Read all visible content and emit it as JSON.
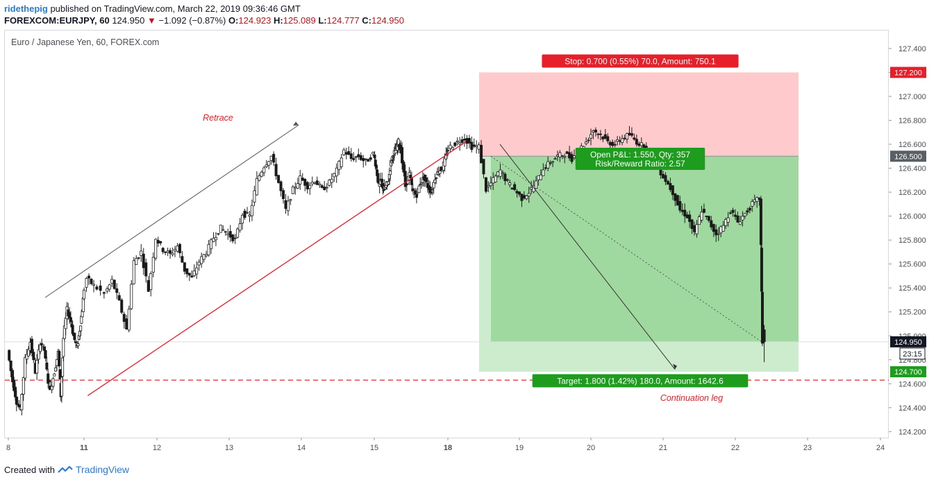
{
  "header": {
    "user": "ridethepig",
    "published": " published on TradingView.com, March 22, 2019 09:36:46 GMT",
    "symbol": "FOREXCOM:EURJPY, 60",
    "last": "124.950",
    "change": "−1.092 (−0.87%)",
    "open_label": "O:",
    "open": "124.923",
    "high_label": "H:",
    "high": "125.089",
    "low_label": "L:",
    "low": "124.777",
    "close_label": "C:",
    "close": "124.950"
  },
  "footer": {
    "prefix": "Created with",
    "brand": "TradingView"
  },
  "colors": {
    "stop_zone": "#fecacb",
    "stop_label": "#e5202a",
    "target_zone": "#a0d9a0",
    "target_zone_light": "#cdebcd",
    "target_label": "#1e9c1e",
    "candle": "#1b1b1b",
    "trendline": "#e5202a"
  },
  "chart_data": {
    "type": "candlestick",
    "title": "Euro / Japanese Yen, 60, FOREX.com",
    "x_ticks": [
      "8",
      "11",
      "12",
      "13",
      "14",
      "15",
      "18",
      "19",
      "20",
      "21",
      "22",
      "23",
      "24"
    ],
    "bold_x_ticks": [
      "11",
      "18"
    ],
    "ylim": [
      124.15,
      127.55
    ],
    "y_ticks": [
      "124.200",
      "124.400",
      "124.600",
      "124.800",
      "125.000",
      "125.200",
      "125.400",
      "125.600",
      "125.800",
      "126.000",
      "126.200",
      "126.400",
      "126.600",
      "126.800",
      "127.000",
      "127.200",
      "127.400"
    ],
    "price_tags": [
      {
        "label": "127.200",
        "value": 127.2,
        "kind": "stop"
      },
      {
        "label": "126.500",
        "value": 126.5,
        "kind": "entry"
      },
      {
        "label": "124.950",
        "value": 124.95,
        "kind": "last"
      },
      {
        "label": "23:15",
        "kind": "countdown"
      },
      {
        "label": "124.700",
        "value": 124.7,
        "kind": "target"
      }
    ],
    "position": {
      "entry": 126.5,
      "stop": 127.2,
      "target": 124.7,
      "stop_label": "Stop: 0.700 (0.55%) 70.0, Amount: 750.1",
      "target_label": "Target: 1.800 (1.42%) 180.0, Amount: 1642.6",
      "pnl_label": "Open P&L: 1.550, Qty: 357",
      "rr_label": "Risk/Reward Ratio: 2.57"
    },
    "annotations": [
      {
        "text": "Retrace"
      },
      {
        "text": "Continuation leg"
      }
    ],
    "support_level": 124.63,
    "swing_low": 124.5,
    "last_price": 124.95,
    "ohlc_path": [
      [
        8.0,
        124.88
      ],
      [
        8.2,
        124.62
      ],
      [
        8.35,
        124.45
      ],
      [
        8.5,
        124.38
      ],
      [
        8.7,
        124.8
      ],
      [
        8.9,
        124.95
      ],
      [
        9.1,
        124.7
      ],
      [
        9.3,
        124.95
      ],
      [
        9.45,
        124.88
      ],
      [
        9.6,
        124.62
      ],
      [
        9.7,
        124.55
      ],
      [
        9.85,
        124.7
      ],
      [
        10.0,
        124.86
      ],
      [
        10.1,
        124.5
      ],
      [
        10.2,
        124.98
      ],
      [
        10.35,
        125.22
      ],
      [
        10.5,
        125.12
      ],
      [
        10.6,
        125.0
      ],
      [
        10.75,
        124.9
      ],
      [
        10.85,
        125.05
      ],
      [
        10.95,
        125.22
      ],
      [
        11.05,
        125.48
      ],
      [
        11.15,
        125.42
      ],
      [
        11.3,
        125.35
      ],
      [
        11.4,
        125.46
      ],
      [
        11.5,
        125.28
      ],
      [
        11.6,
        125.05
      ],
      [
        11.7,
        125.62
      ],
      [
        11.8,
        125.7
      ],
      [
        11.9,
        125.38
      ],
      [
        12.0,
        125.82
      ],
      [
        12.1,
        125.72
      ],
      [
        12.2,
        125.68
      ],
      [
        12.3,
        125.75
      ],
      [
        12.4,
        125.55
      ],
      [
        12.5,
        125.48
      ],
      [
        12.6,
        125.62
      ],
      [
        12.7,
        125.7
      ],
      [
        12.8,
        125.82
      ],
      [
        12.9,
        125.9
      ],
      [
        13.0,
        125.85
      ],
      [
        13.1,
        125.8
      ],
      [
        13.2,
        126.02
      ],
      [
        13.3,
        126.0
      ],
      [
        13.4,
        126.3
      ],
      [
        13.5,
        126.42
      ],
      [
        13.6,
        126.5
      ],
      [
        13.7,
        126.28
      ],
      [
        13.8,
        126.05
      ],
      [
        13.9,
        126.22
      ],
      [
        14.0,
        126.32
      ],
      [
        14.1,
        126.25
      ],
      [
        14.2,
        126.3
      ],
      [
        14.3,
        126.22
      ],
      [
        14.4,
        126.28
      ],
      [
        14.5,
        126.38
      ],
      [
        14.6,
        126.55
      ],
      [
        14.7,
        126.48
      ],
      [
        14.8,
        126.5
      ],
      [
        14.9,
        126.45
      ],
      [
        15.0,
        126.52
      ],
      [
        15.1,
        126.4
      ],
      [
        15.2,
        126.25
      ],
      [
        15.3,
        126.3
      ],
      [
        15.4,
        126.22
      ],
      [
        15.5,
        126.25
      ],
      [
        15.6,
        126.3
      ],
      [
        15.7,
        126.45
      ],
      [
        15.8,
        126.52
      ],
      [
        15.9,
        126.55
      ],
      [
        16.0,
        126.62
      ],
      [
        16.1,
        126.55
      ],
      [
        16.3,
        126.25
      ],
      [
        16.45,
        126.35
      ],
      [
        16.6,
        126.2
      ],
      [
        16.75,
        126.18
      ],
      [
        16.9,
        126.28
      ],
      [
        17.05,
        126.32
      ],
      [
        17.2,
        126.25
      ],
      [
        17.35,
        126.2
      ],
      [
        17.5,
        126.32
      ],
      [
        17.65,
        126.38
      ],
      [
        17.8,
        126.4
      ],
      [
        17.95,
        126.5
      ],
      [
        18.05,
        126.58
      ],
      [
        18.15,
        126.62
      ],
      [
        18.25,
        126.65
      ],
      [
        18.35,
        126.58
      ],
      [
        18.45,
        126.58
      ],
      [
        18.55,
        126.22
      ],
      [
        18.65,
        126.3
      ],
      [
        18.75,
        126.38
      ],
      [
        18.85,
        126.28
      ],
      [
        18.95,
        126.22
      ],
      [
        19.05,
        126.15
      ],
      [
        19.15,
        126.2
      ],
      [
        19.25,
        126.28
      ],
      [
        19.35,
        126.4
      ],
      [
        19.45,
        126.45
      ],
      [
        19.55,
        126.5
      ],
      [
        19.65,
        126.52
      ],
      [
        19.75,
        126.48
      ],
      [
        19.85,
        126.55
      ],
      [
        19.95,
        126.62
      ],
      [
        20.05,
        126.72
      ],
      [
        20.15,
        126.68
      ],
      [
        20.25,
        126.62
      ],
      [
        20.35,
        126.6
      ],
      [
        20.45,
        126.65
      ],
      [
        20.55,
        126.68
      ],
      [
        20.65,
        126.62
      ],
      [
        20.75,
        126.58
      ],
      [
        20.85,
        126.5
      ],
      [
        20.95,
        126.4
      ],
      [
        21.05,
        126.3
      ],
      [
        21.15,
        126.2
      ],
      [
        21.25,
        126.05
      ],
      [
        21.35,
        126.0
      ],
      [
        21.45,
        125.85
      ],
      [
        21.55,
        126.05
      ],
      [
        21.65,
        125.95
      ],
      [
        21.75,
        125.85
      ],
      [
        21.85,
        125.92
      ],
      [
        21.95,
        126.05
      ],
      [
        22.05,
        125.95
      ],
      [
        22.15,
        126.02
      ],
      [
        22.25,
        126.1
      ],
      [
        22.35,
        126.15
      ],
      [
        22.38,
        124.95
      ]
    ]
  }
}
